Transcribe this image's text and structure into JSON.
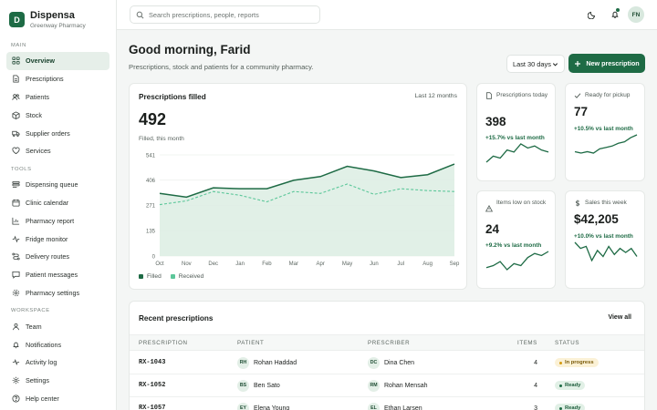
{
  "brand": {
    "initial": "D",
    "name": "Dispensa",
    "subtitle": "Greenway Pharmacy"
  },
  "sidebar": {
    "sections": [
      {
        "label": "MAIN",
        "items": [
          {
            "label": "Overview",
            "icon": "grid-icon",
            "active": true
          },
          {
            "label": "Prescriptions",
            "icon": "document-icon"
          },
          {
            "label": "Patients",
            "icon": "users-icon"
          },
          {
            "label": "Stock",
            "icon": "box-icon"
          },
          {
            "label": "Supplier orders",
            "icon": "truck-icon"
          },
          {
            "label": "Services",
            "icon": "heart-icon"
          }
        ]
      },
      {
        "label": "TOOLS",
        "items": [
          {
            "label": "Dispensing queue",
            "icon": "queue-icon"
          },
          {
            "label": "Clinic calendar",
            "icon": "calendar-icon"
          },
          {
            "label": "Pharmacy report",
            "icon": "chart-icon"
          },
          {
            "label": "Fridge monitor",
            "icon": "activity-icon"
          },
          {
            "label": "Delivery routes",
            "icon": "route-icon"
          },
          {
            "label": "Patient messages",
            "icon": "message-icon"
          },
          {
            "label": "Pharmacy settings",
            "icon": "gear-icon"
          }
        ]
      },
      {
        "label": "WORKSPACE",
        "items": [
          {
            "label": "Team",
            "icon": "team-icon"
          },
          {
            "label": "Notifications",
            "icon": "bell-icon"
          },
          {
            "label": "Activity log",
            "icon": "pulse-icon"
          },
          {
            "label": "Settings",
            "icon": "settings-icon"
          },
          {
            "label": "Help center",
            "icon": "help-icon"
          }
        ]
      }
    ]
  },
  "topbar": {
    "search_placeholder": "Search prescriptions, people, reports",
    "user_initials": "FN"
  },
  "header": {
    "greeting": "Good morning, Farid",
    "subtitle": "Prescriptions, stock and patients for a community pharmacy.",
    "range_label": "Last 30 days",
    "new_button": "New prescription"
  },
  "chart_card": {
    "title": "Prescriptions filled",
    "range": "Last 12 months",
    "total": "492",
    "total_caption": "Filled, this month"
  },
  "chart_data": {
    "type": "line",
    "categories": [
      "Oct",
      "Nov",
      "Dec",
      "Jan",
      "Feb",
      "Mar",
      "Apr",
      "May",
      "Jun",
      "Jul",
      "Aug",
      "Sep"
    ],
    "series": [
      {
        "name": "Filled",
        "values": [
          335,
          315,
          365,
          360,
          360,
          405,
          425,
          480,
          455,
          420,
          435,
          492
        ],
        "color": "#1e6b45"
      },
      {
        "name": "Received",
        "values": [
          275,
          295,
          345,
          325,
          290,
          345,
          335,
          385,
          330,
          360,
          350,
          345
        ],
        "color": "#5cc79a"
      }
    ],
    "yticks": [
      0,
      135,
      271,
      406,
      541
    ],
    "ylim": [
      0,
      541
    ],
    "grid": true,
    "legend_position": "bottom-left"
  },
  "stats": [
    {
      "label": "Prescriptions today",
      "icon": "document-icon",
      "value": "398",
      "delta": "+15.7% vs last month",
      "spark": [
        6,
        9,
        8,
        12,
        11,
        15,
        13,
        14,
        12,
        11
      ]
    },
    {
      "label": "Ready for pickup",
      "icon": "check-icon",
      "value": "77",
      "delta": "+10.5% vs last month",
      "spark": [
        5,
        4,
        5,
        4,
        7,
        8,
        9,
        11,
        12,
        15,
        17
      ]
    },
    {
      "label": "Items low on stock",
      "icon": "alert-icon",
      "value": "24",
      "delta": "+9.2% vs last month",
      "spark": [
        6,
        7,
        9,
        5,
        8,
        7,
        11,
        13,
        12,
        14
      ]
    },
    {
      "label": "Sales this week",
      "icon": "dollar-icon",
      "value": "$42,205",
      "delta": "+10.0% vs last month",
      "spark": [
        15,
        12,
        13,
        6,
        11,
        8,
        13,
        9,
        12,
        10,
        12,
        8
      ]
    }
  ],
  "recent": {
    "title": "Recent prescriptions",
    "view_all": "View all",
    "columns": [
      "PRESCRIPTION",
      "PATIENT",
      "PRESCRIBER",
      "ITEMS",
      "STATUS"
    ],
    "rows": [
      {
        "id": "RX-1043",
        "patient_initials": "RH",
        "patient": "Rohan Haddad",
        "prescriber_initials": "DC",
        "prescriber": "Dina Chen",
        "items": "4",
        "status": "In progress",
        "status_kind": "progress"
      },
      {
        "id": "RX-1052",
        "patient_initials": "BS",
        "patient": "Ben Sato",
        "prescriber_initials": "RM",
        "prescriber": "Rohan Mensah",
        "items": "4",
        "status": "Ready",
        "status_kind": "ready"
      },
      {
        "id": "RX-1057",
        "patient_initials": "EY",
        "patient": "Elena Young",
        "prescriber_initials": "EL",
        "prescriber": "Ethan Larsen",
        "items": "3",
        "status": "Ready",
        "status_kind": "ready"
      }
    ]
  }
}
